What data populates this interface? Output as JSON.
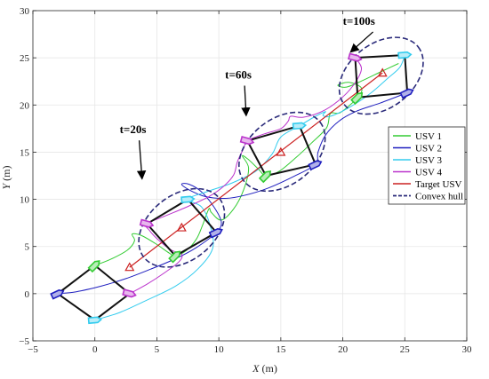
{
  "chart_data": {
    "type": "line",
    "xlabel_var": "X",
    "xlabel_unit": " (m)",
    "ylabel_var": "Y",
    "ylabel_unit": " (m)",
    "xlim": [
      -5,
      30
    ],
    "ylim": [
      -5,
      30
    ],
    "xticks": [
      "−5",
      "0",
      "5",
      "10",
      "15",
      "20",
      "25",
      "30"
    ],
    "yticks": [
      "−5",
      "0",
      "5",
      "10",
      "15",
      "20",
      "25",
      "30"
    ],
    "grid": true,
    "legend_position": "right",
    "annotations": [
      {
        "text": "t=20s",
        "x": 2.0,
        "y": 17.0,
        "arrow_to": [
          3.8,
          12.3
        ]
      },
      {
        "text": "t=60s",
        "x": 10.5,
        "y": 22.8,
        "arrow_to": [
          12.2,
          19.0
        ]
      },
      {
        "text": "t=100s",
        "x": 20.0,
        "y": 28.5,
        "arrow_to": [
          20.7,
          25.7
        ]
      }
    ],
    "series": [
      {
        "name": "USV 1",
        "color": "#33cc33",
        "style": "solid",
        "role": "trajectory"
      },
      {
        "name": "USV 2",
        "color": "#1f1fbf",
        "style": "solid",
        "role": "trajectory"
      },
      {
        "name": "USV 3",
        "color": "#33ccee",
        "style": "solid",
        "role": "trajectory"
      },
      {
        "name": "USV 4",
        "color": "#bb33cc",
        "style": "solid",
        "role": "trajectory"
      },
      {
        "name": "Target USV",
        "color": "#cc2222",
        "style": "solid",
        "role": "target"
      },
      {
        "name": "Convex hull",
        "color": "#2a2a7a",
        "style": "dashed",
        "role": "hull"
      }
    ],
    "target_path": {
      "x": [
        2.8,
        23.2
      ],
      "y": [
        2.8,
        23.4
      ]
    },
    "target_markers": [
      {
        "x": 2.8,
        "y": 2.8
      },
      {
        "x": 7.0,
        "y": 7.0
      },
      {
        "x": 15.0,
        "y": 15.0
      },
      {
        "x": 23.2,
        "y": 23.4
      }
    ],
    "formations": [
      {
        "usv1": [
          0.0,
          3.0
        ],
        "usv2": [
          -3.0,
          0.0
        ],
        "usv3": [
          0.0,
          -2.8
        ],
        "usv4": [
          2.8,
          0.0
        ],
        "hull": false
      },
      {
        "usv1": [
          6.5,
          4.0
        ],
        "usv2": [
          9.8,
          6.5
        ],
        "usv3": [
          7.5,
          10.0
        ],
        "usv4": [
          4.2,
          7.4
        ],
        "hull": true
      },
      {
        "usv1": [
          13.8,
          12.5
        ],
        "usv2": [
          17.8,
          13.7
        ],
        "usv3": [
          16.5,
          17.8
        ],
        "usv4": [
          12.3,
          16.2
        ],
        "hull": true
      },
      {
        "usv1": [
          21.2,
          20.8
        ],
        "usv2": [
          25.2,
          21.3
        ],
        "usv3": [
          25.0,
          25.3
        ],
        "usv4": [
          21.0,
          25.0
        ],
        "hull": true
      }
    ],
    "trajectories": {
      "usv1": [
        [
          0,
          3
        ],
        [
          1.2,
          3.6
        ],
        [
          2.6,
          4.6
        ],
        [
          3.2,
          5.6
        ],
        [
          3.0,
          6.3
        ],
        [
          3.7,
          6.2
        ],
        [
          4.9,
          5.3
        ],
        [
          6.0,
          4.3
        ],
        [
          6.5,
          4.0
        ],
        [
          7.4,
          4.6
        ],
        [
          8.2,
          5.8
        ],
        [
          8.7,
          7.3
        ],
        [
          9.2,
          9.0
        ],
        [
          9.4,
          8.6
        ],
        [
          10.2,
          7.8
        ],
        [
          11.2,
          9.0
        ],
        [
          12.0,
          11.0
        ],
        [
          12.4,
          13.3
        ],
        [
          11.9,
          14.6
        ],
        [
          12.4,
          14.2
        ],
        [
          13.2,
          13.2
        ],
        [
          13.8,
          12.5
        ],
        [
          14.9,
          13.0
        ],
        [
          16.2,
          14.4
        ],
        [
          17.5,
          16.0
        ],
        [
          18.7,
          17.6
        ],
        [
          19.0,
          19.1
        ],
        [
          19.8,
          19.2
        ],
        [
          21.2,
          20.8
        ],
        [
          21.5,
          21.8
        ],
        [
          20.5,
          22.4
        ],
        [
          19.6,
          22.1
        ],
        [
          20.3,
          21.9
        ],
        [
          21.6,
          22.6
        ],
        [
          23.2,
          23.6
        ],
        [
          24.5,
          24.4
        ]
      ],
      "usv2": [
        [
          -3,
          0
        ],
        [
          -1.5,
          0.2
        ],
        [
          0.5,
          0.8
        ],
        [
          2.5,
          1.6
        ],
        [
          4.5,
          2.6
        ],
        [
          6.5,
          3.7
        ],
        [
          8.2,
          4.9
        ],
        [
          9.8,
          6.5
        ],
        [
          10.2,
          7.6
        ],
        [
          9.6,
          9.2
        ],
        [
          8.6,
          10.8
        ],
        [
          7.6,
          11.6
        ],
        [
          7.0,
          11.6
        ],
        [
          7.6,
          11.0
        ],
        [
          8.9,
          10.3
        ],
        [
          10.5,
          10.1
        ],
        [
          12.0,
          10.4
        ],
        [
          14.0,
          11.2
        ],
        [
          16.0,
          12.4
        ],
        [
          17.8,
          13.7
        ],
        [
          18.0,
          15.0
        ],
        [
          18.6,
          16.8
        ],
        [
          19.8,
          18.4
        ],
        [
          21.2,
          19.4
        ],
        [
          23.0,
          20.2
        ],
        [
          25.2,
          21.3
        ]
      ],
      "usv3": [
        [
          0,
          -2.8
        ],
        [
          2.0,
          -2.0
        ],
        [
          4.0,
          -0.8
        ],
        [
          6.5,
          0.8
        ],
        [
          8.3,
          2.6
        ],
        [
          9.5,
          4.8
        ],
        [
          9.3,
          7.2
        ],
        [
          8.6,
          9.2
        ],
        [
          7.5,
          10.0
        ],
        [
          9.0,
          10.8
        ],
        [
          11.0,
          11.7
        ],
        [
          13.0,
          13.0
        ],
        [
          14.3,
          14.8
        ],
        [
          15.0,
          16.6
        ],
        [
          16.5,
          17.8
        ],
        [
          17.8,
          18.8
        ],
        [
          18.6,
          19.3
        ],
        [
          18.4,
          18.9
        ],
        [
          19.0,
          18.8
        ],
        [
          20.6,
          19.8
        ],
        [
          22.2,
          21.2
        ],
        [
          23.6,
          22.8
        ],
        [
          24.6,
          24.0
        ],
        [
          25.0,
          25.3
        ]
      ],
      "usv4": [
        [
          2.8,
          0
        ],
        [
          4.2,
          1.0
        ],
        [
          5.6,
          2.2
        ],
        [
          6.8,
          3.4
        ],
        [
          7.0,
          4.2
        ],
        [
          6.2,
          4.6
        ],
        [
          5.2,
          5.6
        ],
        [
          4.4,
          6.7
        ],
        [
          4.2,
          7.4
        ],
        [
          5.8,
          8.3
        ],
        [
          7.6,
          9.3
        ],
        [
          9.2,
          10.3
        ],
        [
          10.4,
          11.4
        ],
        [
          11.2,
          12.6
        ],
        [
          11.5,
          14.0
        ],
        [
          12.0,
          15.4
        ],
        [
          12.3,
          16.2
        ],
        [
          13.6,
          16.9
        ],
        [
          15.0,
          17.5
        ],
        [
          15.6,
          18.3
        ],
        [
          15.8,
          18.8
        ],
        [
          16.8,
          18.7
        ],
        [
          18.3,
          19.3
        ],
        [
          19.6,
          20.4
        ],
        [
          20.8,
          22.0
        ],
        [
          21.5,
          23.8
        ],
        [
          21.0,
          25.0
        ]
      ]
    }
  }
}
